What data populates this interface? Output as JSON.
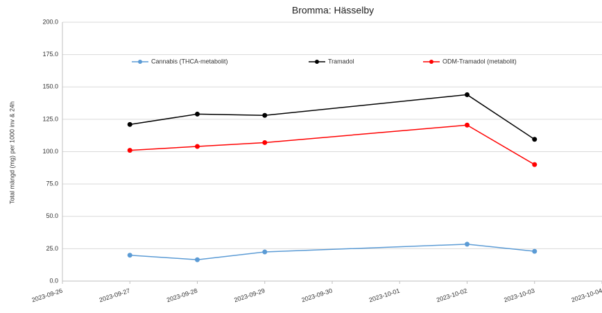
{
  "chart_data": {
    "type": "line",
    "title": "Bromma: Hässelby",
    "y_label": "Total mängd (mg) per 1000 inv & 24h",
    "x": [
      "2023-09-27",
      "2023-09-28",
      "2023-09-29",
      "2023-10-02",
      "2023-10-03"
    ],
    "series": [
      {
        "name": "Cannabis (THCA-metabolit)",
        "color": "#5b9bd5",
        "values": [
          20,
          16.5,
          22.5,
          28.5,
          23
        ]
      },
      {
        "name": "Tramadol",
        "color": "#000000",
        "values": [
          121,
          129,
          128,
          144,
          109.5
        ]
      },
      {
        "name": "ODM-Tramadol (metabolit)",
        "color": "#ff0000",
        "values": [
          101,
          104,
          107,
          120.5,
          90
        ]
      }
    ],
    "xlim": [
      "2023-09-26",
      "2023-10-04"
    ],
    "xticks": [
      "2023-09-26",
      "2023-09-27",
      "2023-09-28",
      "2023-09-29",
      "2023-09-30",
      "2023-10-01",
      "2023-10-02",
      "2023-10-03",
      "2023-10-04"
    ],
    "ylim": [
      0,
      200
    ],
    "yticks": [
      {
        "value": 0,
        "label": "0.0"
      },
      {
        "value": 25,
        "label": "25.0"
      },
      {
        "value": 50,
        "label": "50.0"
      },
      {
        "value": 75,
        "label": "75.0"
      },
      {
        "value": 100,
        "label": "100.0"
      },
      {
        "value": 125,
        "label": "125.0"
      },
      {
        "value": 150,
        "label": "150.0"
      },
      {
        "value": 175,
        "label": "175.0"
      },
      {
        "value": 200,
        "label": "200.0"
      }
    ],
    "grid": true,
    "legend": "top"
  }
}
